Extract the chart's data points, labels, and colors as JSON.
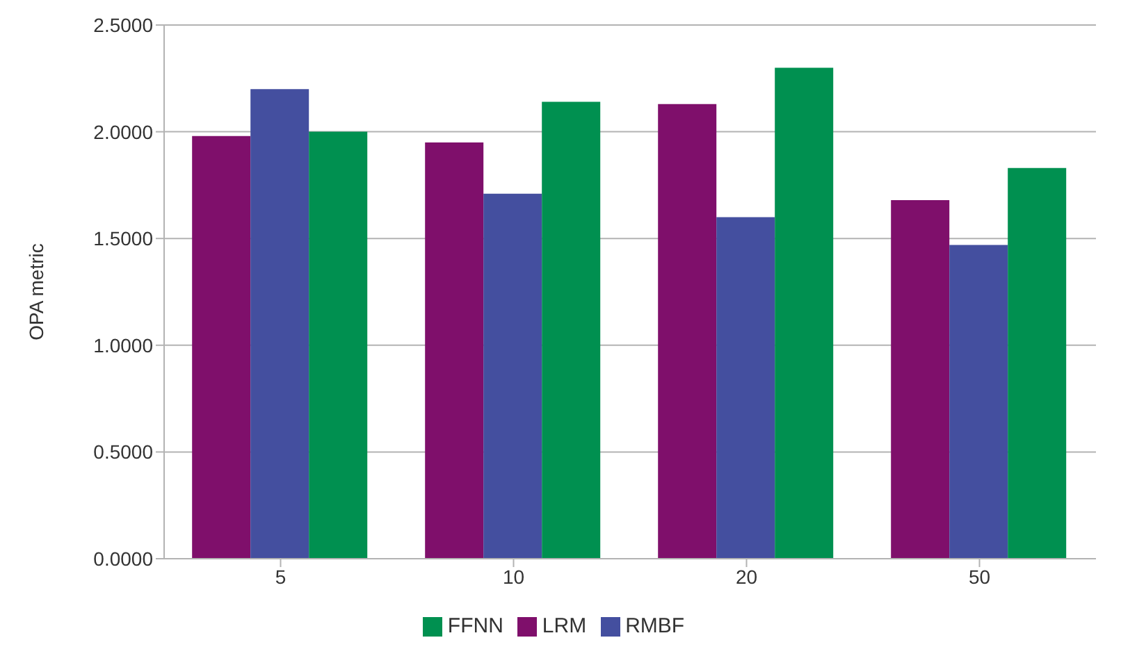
{
  "chart_data": {
    "type": "bar",
    "ylabel": "OPA metric",
    "categories": [
      "5",
      "10",
      "20",
      "50"
    ],
    "series": [
      {
        "name": "LRM",
        "color": "#7f0f6b",
        "values": [
          1.98,
          1.95,
          2.13,
          1.68
        ]
      },
      {
        "name": "RMBF",
        "color": "#444f9f",
        "values": [
          2.2,
          1.71,
          1.6,
          1.47
        ]
      },
      {
        "name": "FFNN",
        "color": "#009050",
        "values": [
          2.0,
          2.14,
          2.3,
          1.83
        ]
      }
    ],
    "ylim": [
      0,
      2.5
    ],
    "yticks": [
      {
        "value": 0,
        "label": "0.0000"
      },
      {
        "value": 0.5,
        "label": "0.5000"
      },
      {
        "value": 1,
        "label": "1.0000"
      },
      {
        "value": 1.5,
        "label": "1.5000"
      },
      {
        "value": 2,
        "label": "2.0000"
      },
      {
        "value": 2.5,
        "label": "2.5000"
      }
    ],
    "grid": "y",
    "legend": "bottom"
  }
}
